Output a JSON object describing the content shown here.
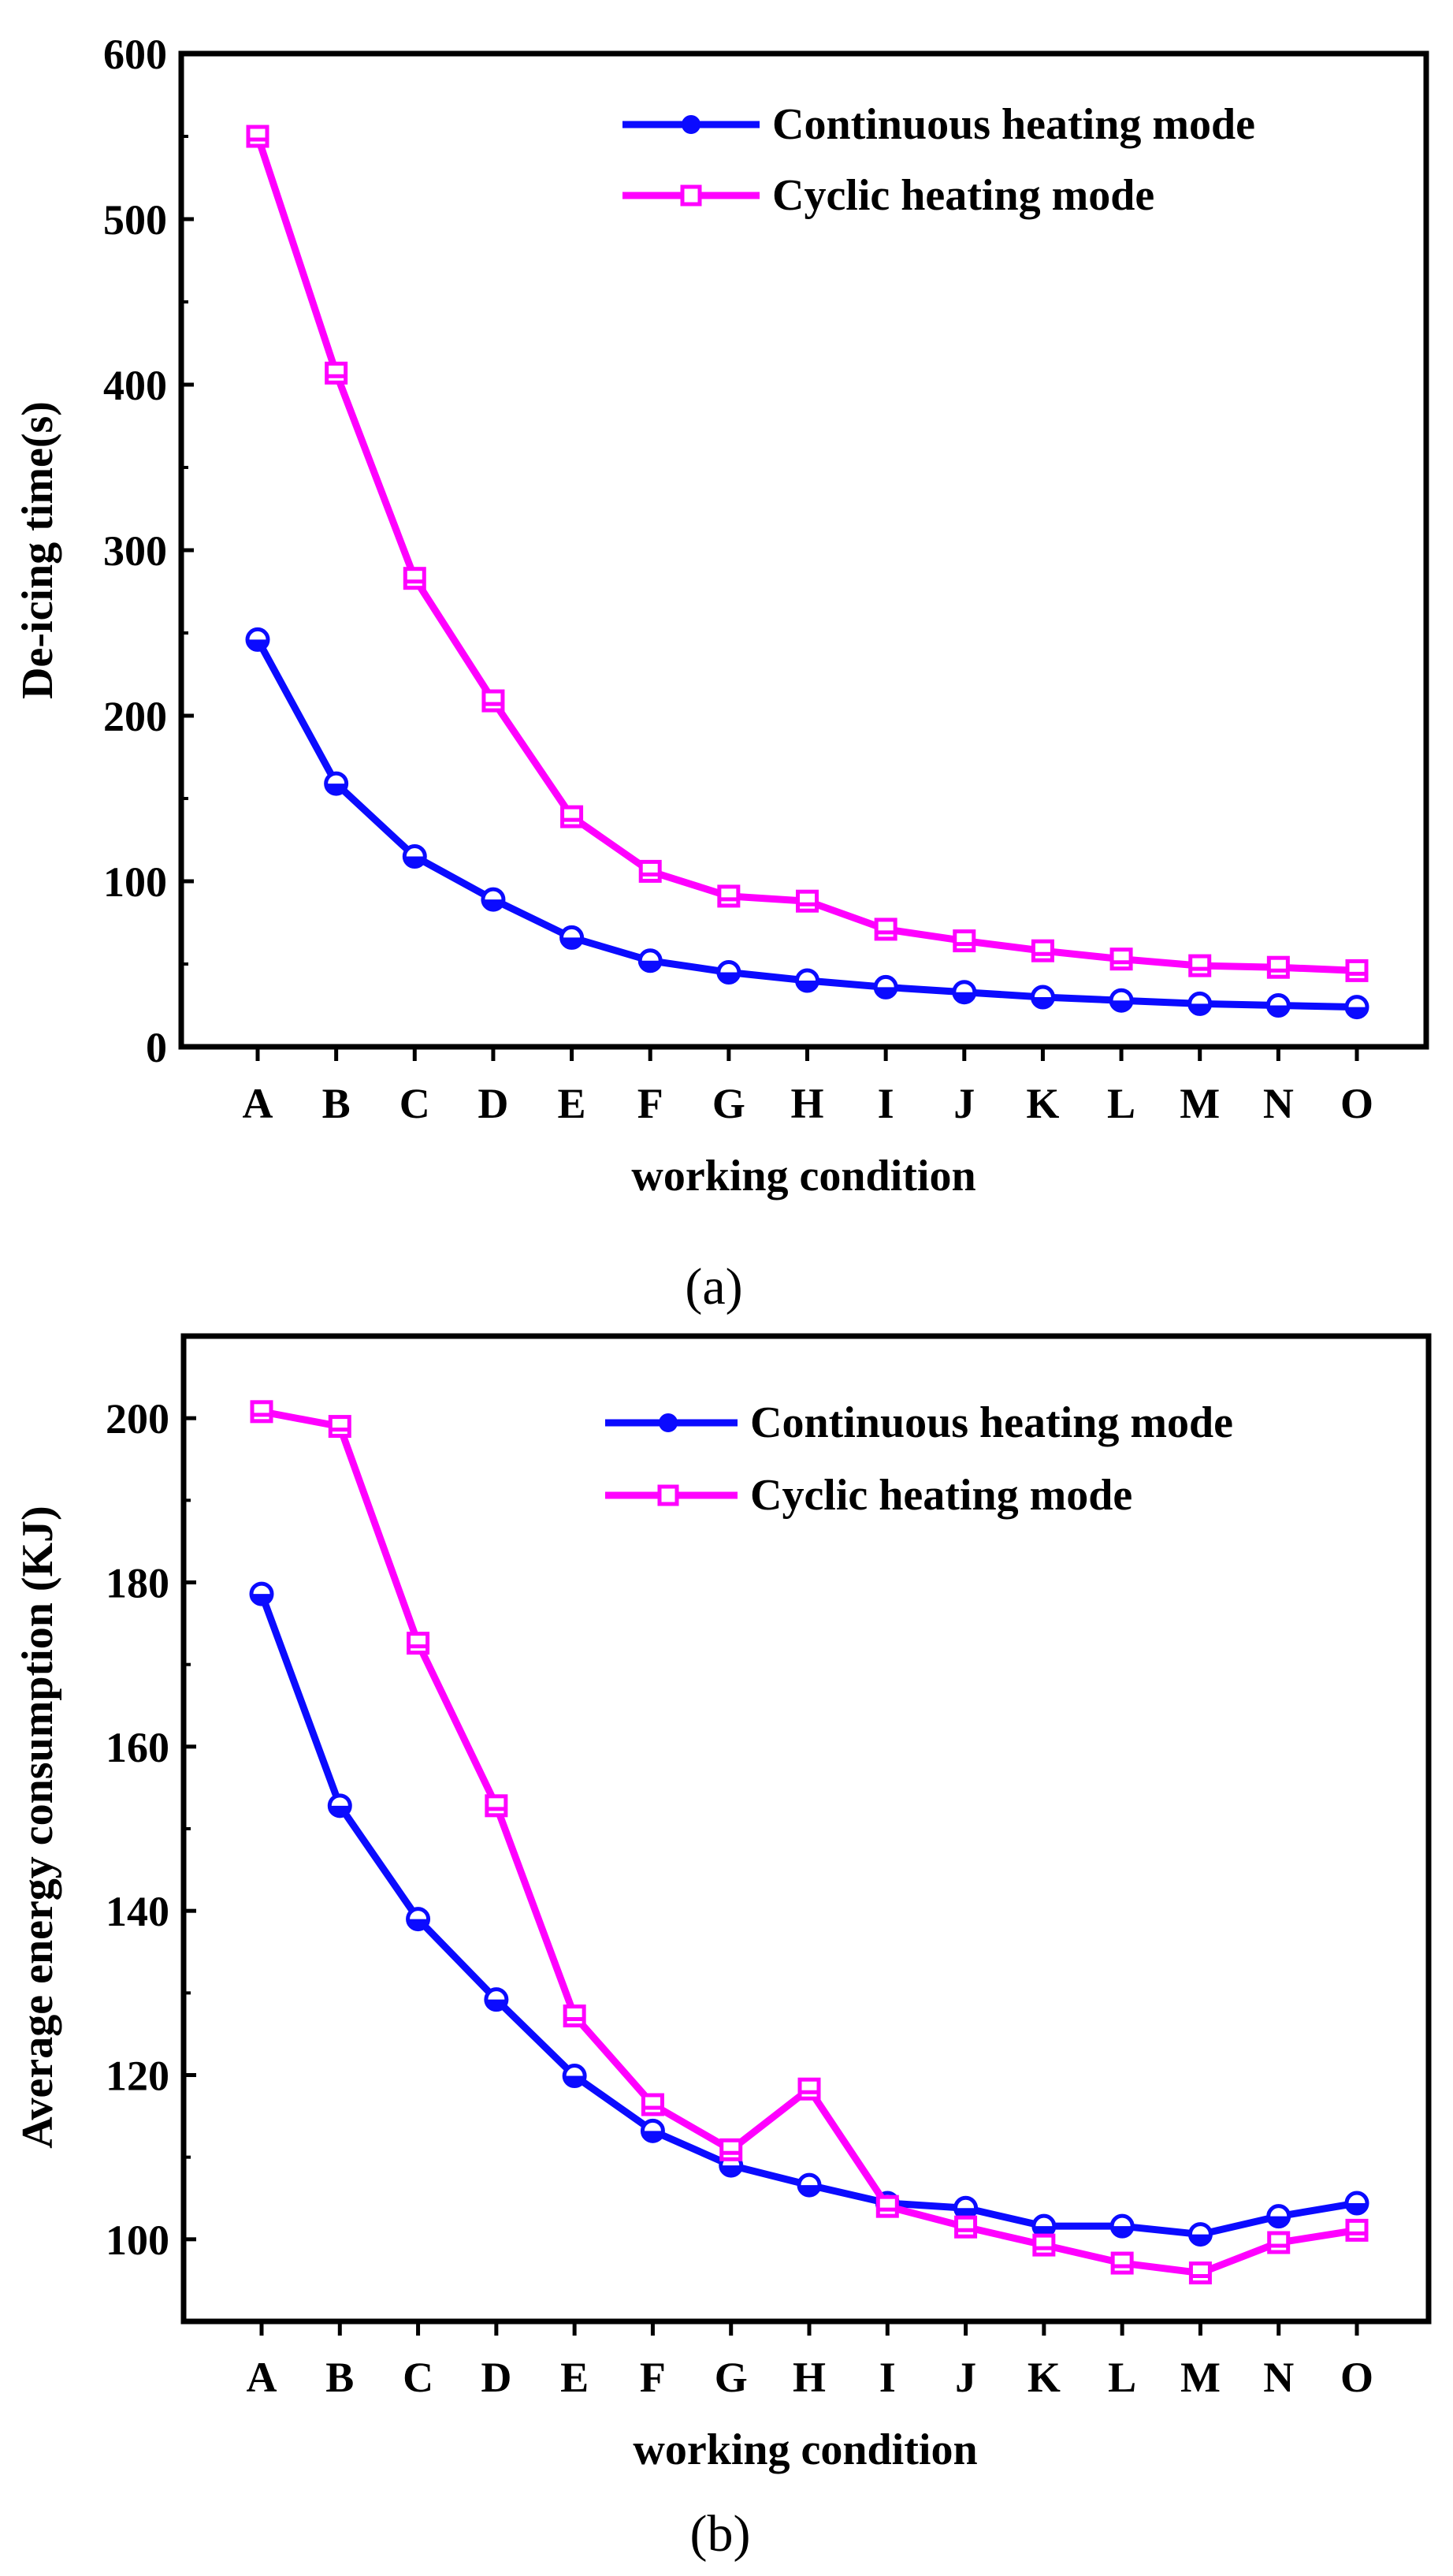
{
  "colors": {
    "continuous": "#0b0bff",
    "cyclic": "#ff00ff",
    "axis": "#000000"
  },
  "chart_data": [
    {
      "type": "line",
      "panel_label": "(a)",
      "xlabel": "working condition",
      "ylabel": "De-icing time(s)",
      "categories": [
        "A",
        "B",
        "C",
        "D",
        "E",
        "F",
        "G",
        "H",
        "I",
        "J",
        "K",
        "L",
        "M",
        "N",
        "O"
      ],
      "ylim": [
        0,
        600
      ],
      "yticks": [
        0,
        100,
        200,
        300,
        400,
        500,
        600
      ],
      "legend_position": "top-right",
      "series": [
        {
          "name": "Continuous heating mode",
          "marker": "circle",
          "values": [
            246,
            159,
            115,
            89,
            66,
            52,
            45,
            40,
            36,
            33,
            30,
            28,
            26,
            25,
            24
          ]
        },
        {
          "name": "Cyclic heating mode",
          "marker": "square",
          "values": [
            550,
            407,
            283,
            209,
            139,
            106,
            91,
            88,
            71,
            64,
            58,
            53,
            49,
            48,
            46
          ]
        }
      ]
    },
    {
      "type": "line",
      "panel_label": "(b)",
      "xlabel": "working condition",
      "ylabel": "Average energy consumption (KJ)",
      "categories": [
        "A",
        "B",
        "C",
        "D",
        "E",
        "F",
        "G",
        "H",
        "I",
        "J",
        "K",
        "L",
        "M",
        "N",
        "O"
      ],
      "ylim": [
        90,
        210
      ],
      "yticks": [
        100,
        120,
        140,
        160,
        180,
        200
      ],
      "legend_position": "top-right",
      "series": [
        {
          "name": "Continuous heating mode",
          "marker": "circle",
          "values": [
            178.6,
            152.8,
            139.0,
            129.2,
            119.9,
            113.2,
            109.0,
            106.6,
            104.4,
            103.8,
            101.6,
            101.6,
            100.6,
            102.8,
            104.4
          ]
        },
        {
          "name": "Cyclic heating mode",
          "marker": "square",
          "values": [
            200.8,
            199.0,
            172.6,
            152.8,
            127.2,
            116.4,
            110.9,
            118.3,
            104.0,
            101.5,
            99.3,
            97.1,
            95.9,
            99.6,
            101.1
          ]
        }
      ]
    }
  ]
}
